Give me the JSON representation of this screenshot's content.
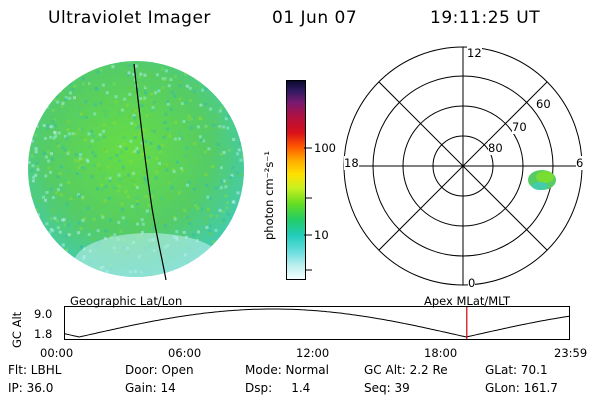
{
  "header": {
    "instrument": "Ultraviolet Imager",
    "date": "01 Jun 07",
    "time": "19:11:25 UT"
  },
  "colorbar": {
    "label": "photon cm⁻²s⁻¹",
    "ticks": [
      "100",
      "10"
    ]
  },
  "polar_plot": {
    "mlt_labels": [
      "12",
      "18",
      "6",
      "0"
    ],
    "lat_labels": [
      "60",
      "70",
      "80"
    ]
  },
  "timeline": {
    "left_title": "Geographic Lat/Lon",
    "right_title": "Apex MLat/MLT",
    "y_axis_label": "GC Alt",
    "y_ticks": [
      "9.0",
      "1.8"
    ],
    "time_ticks": [
      "00:00",
      "06:00",
      "12:00",
      "18:00",
      "23:59"
    ],
    "current_time_fraction": 0.796,
    "marker_color": "#cc0000"
  },
  "status": {
    "row1": {
      "filter": "Flt: LBHL",
      "door": "Door: Open",
      "mode": "Mode: Normal",
      "gc_alt": "GC Alt: 2.2 Re",
      "glat": "GLat:  70.1"
    },
    "row2": {
      "ip": "IP: 36.0",
      "gain": "Gain: 14",
      "dsp": "Dsp:     1.4",
      "seq": "Seq: 39",
      "glon": "GLon: 161.7"
    }
  }
}
